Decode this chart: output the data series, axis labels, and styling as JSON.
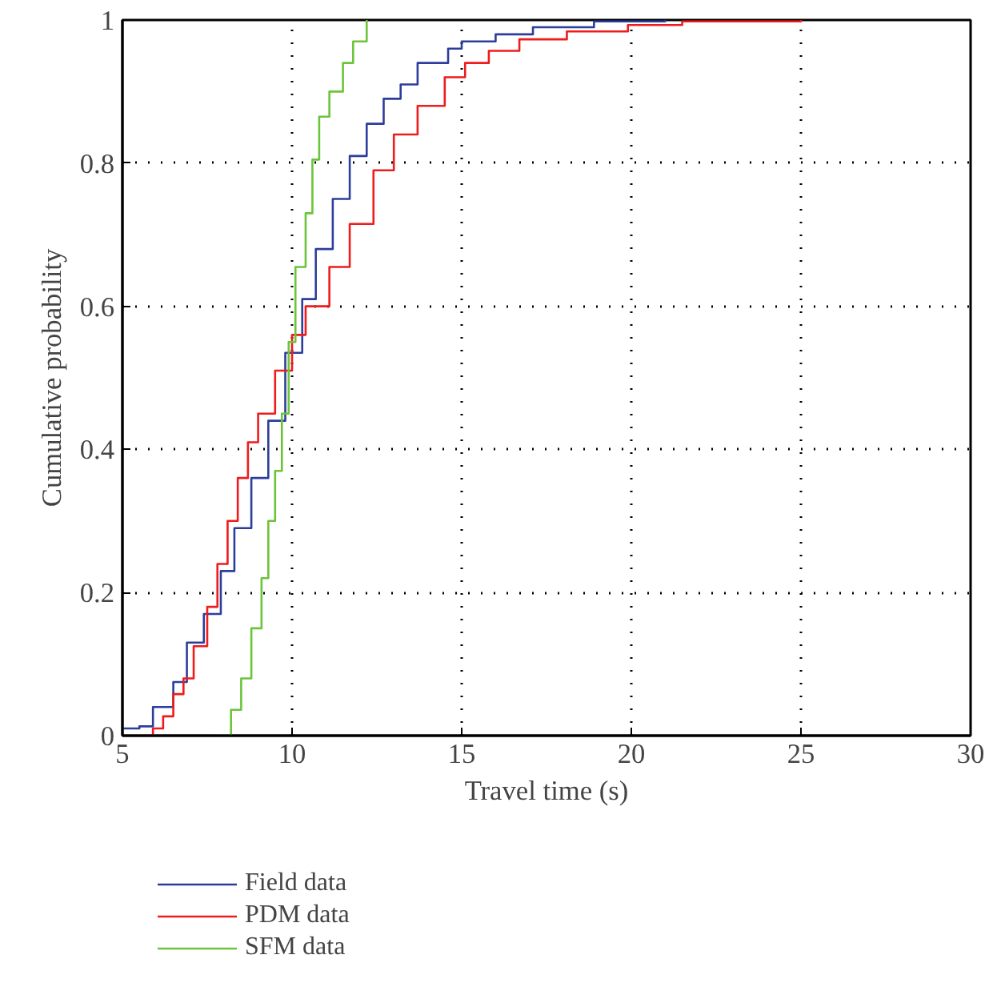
{
  "chart_data": {
    "type": "step",
    "xlabel": "Travel time (s)",
    "ylabel": "Cumulative probability",
    "xlim": [
      5,
      30
    ],
    "ylim": [
      0,
      1
    ],
    "xticks": [
      5,
      10,
      15,
      20,
      25,
      30
    ],
    "yticks": [
      0,
      0.2,
      0.4,
      0.6,
      0.8,
      1
    ],
    "grid": true,
    "legend": "bottom",
    "line_style": "solid",
    "marker": "none",
    "series": [
      {
        "name": "Field data",
        "color": "#2c3e9c",
        "x": [
          5.0,
          5.5,
          5.9,
          6.5,
          6.9,
          7.4,
          7.9,
          8.3,
          8.8,
          9.3,
          9.8,
          10.3,
          10.7,
          11.2,
          11.7,
          12.2,
          12.7,
          13.2,
          13.7,
          14.6,
          15.0,
          16.0,
          17.1,
          18.9,
          21.0
        ],
        "values": [
          0.01,
          0.013,
          0.04,
          0.075,
          0.13,
          0.17,
          0.23,
          0.29,
          0.36,
          0.44,
          0.535,
          0.61,
          0.68,
          0.75,
          0.81,
          0.855,
          0.89,
          0.91,
          0.94,
          0.96,
          0.97,
          0.98,
          0.99,
          0.998,
          1.0
        ]
      },
      {
        "name": "PDM data",
        "color": "#ee1c1c",
        "x": [
          5.6,
          5.9,
          6.2,
          6.5,
          6.8,
          7.1,
          7.5,
          7.8,
          8.1,
          8.4,
          8.7,
          9.0,
          9.5,
          10.0,
          10.4,
          11.1,
          11.7,
          12.4,
          13.0,
          13.7,
          14.5,
          15.1,
          15.8,
          16.7,
          18.1,
          19.9,
          21.5,
          25.0
        ],
        "values": [
          0.0,
          0.01,
          0.027,
          0.058,
          0.08,
          0.125,
          0.18,
          0.24,
          0.3,
          0.36,
          0.41,
          0.45,
          0.51,
          0.56,
          0.6,
          0.655,
          0.715,
          0.79,
          0.84,
          0.88,
          0.92,
          0.94,
          0.957,
          0.973,
          0.984,
          0.993,
          0.998,
          1.0
        ]
      },
      {
        "name": "SFM data",
        "color": "#6cc43a",
        "x": [
          7.7,
          8.2,
          8.5,
          8.8,
          9.1,
          9.3,
          9.5,
          9.7,
          9.9,
          10.1,
          10.4,
          10.6,
          10.8,
          11.1,
          11.5,
          11.8,
          12.2
        ],
        "values": [
          0.0,
          0.036,
          0.08,
          0.15,
          0.22,
          0.3,
          0.37,
          0.45,
          0.55,
          0.655,
          0.73,
          0.805,
          0.865,
          0.9,
          0.94,
          0.97,
          1.0
        ]
      }
    ]
  }
}
